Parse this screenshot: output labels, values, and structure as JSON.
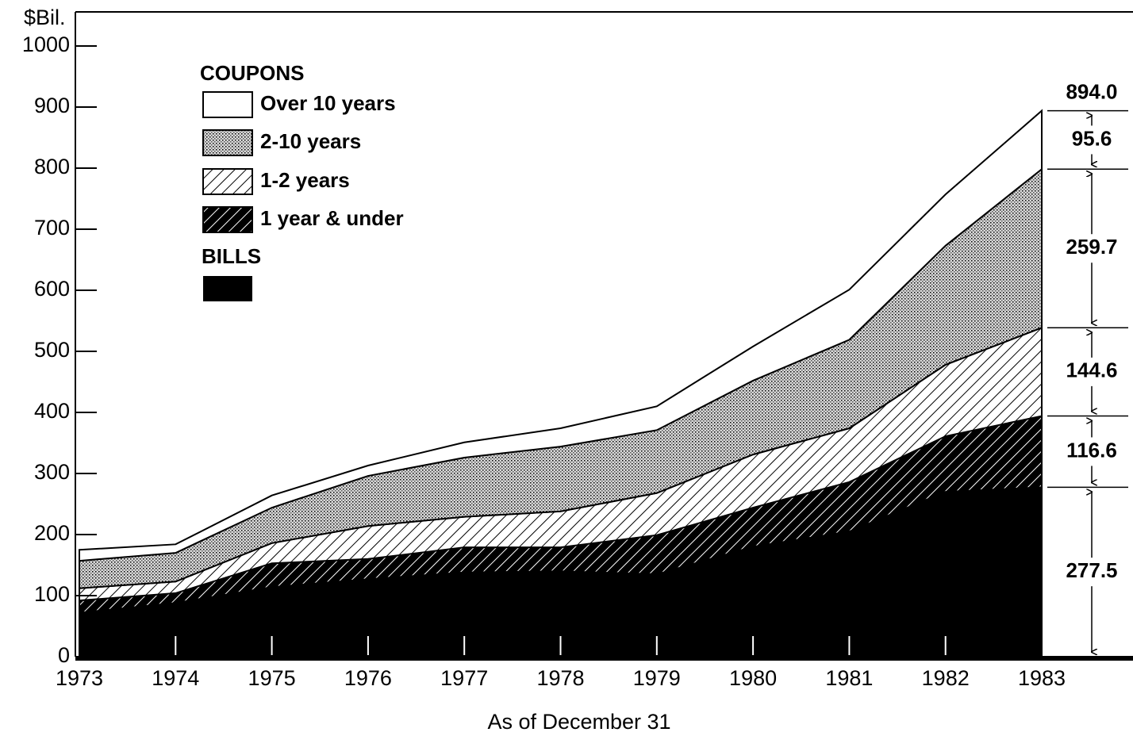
{
  "chart_data": {
    "type": "area",
    "y_label": "$Bil.",
    "x_label": "As of December 31",
    "legend_title": "COUPONS",
    "x": [
      "1973",
      "1974",
      "1975",
      "1976",
      "1977",
      "1978",
      "1979",
      "1980",
      "1981",
      "1982",
      "1983"
    ],
    "series": [
      {
        "name": "BILLS",
        "color": "#000000",
        "pattern": "solid",
        "values": [
          72,
          88,
          114,
          127,
          138,
          140,
          135,
          180,
          205,
          270,
          277.5
        ]
      },
      {
        "name": "1 year & under",
        "color": "#000000",
        "pattern": "dense-hatch",
        "values": [
          20,
          16,
          39,
          33,
          41,
          39,
          64,
          64,
          81,
          91,
          116.6
        ]
      },
      {
        "name": "1-2 years",
        "color": "#ffffff",
        "pattern": "light-hatch",
        "values": [
          20,
          19,
          33,
          54,
          50,
          59,
          69,
          87,
          88,
          117,
          144.6
        ]
      },
      {
        "name": "2-10 years",
        "color": "#b0b0b0",
        "pattern": "stipple",
        "values": [
          45,
          47,
          58,
          82,
          97,
          106,
          103,
          121,
          145,
          195,
          259.7
        ]
      },
      {
        "name": "Over 10 years",
        "color": "#ffffff",
        "pattern": "solid",
        "values": [
          18,
          14,
          20,
          17,
          25,
          30,
          39,
          56,
          82,
          84,
          95.6
        ]
      }
    ],
    "total": {
      "value": 894.0,
      "label": "894.0"
    },
    "ylim": [
      0,
      1000
    ],
    "yticks": [
      0,
      100,
      200,
      300,
      400,
      500,
      600,
      700,
      800,
      900,
      1000
    ]
  }
}
